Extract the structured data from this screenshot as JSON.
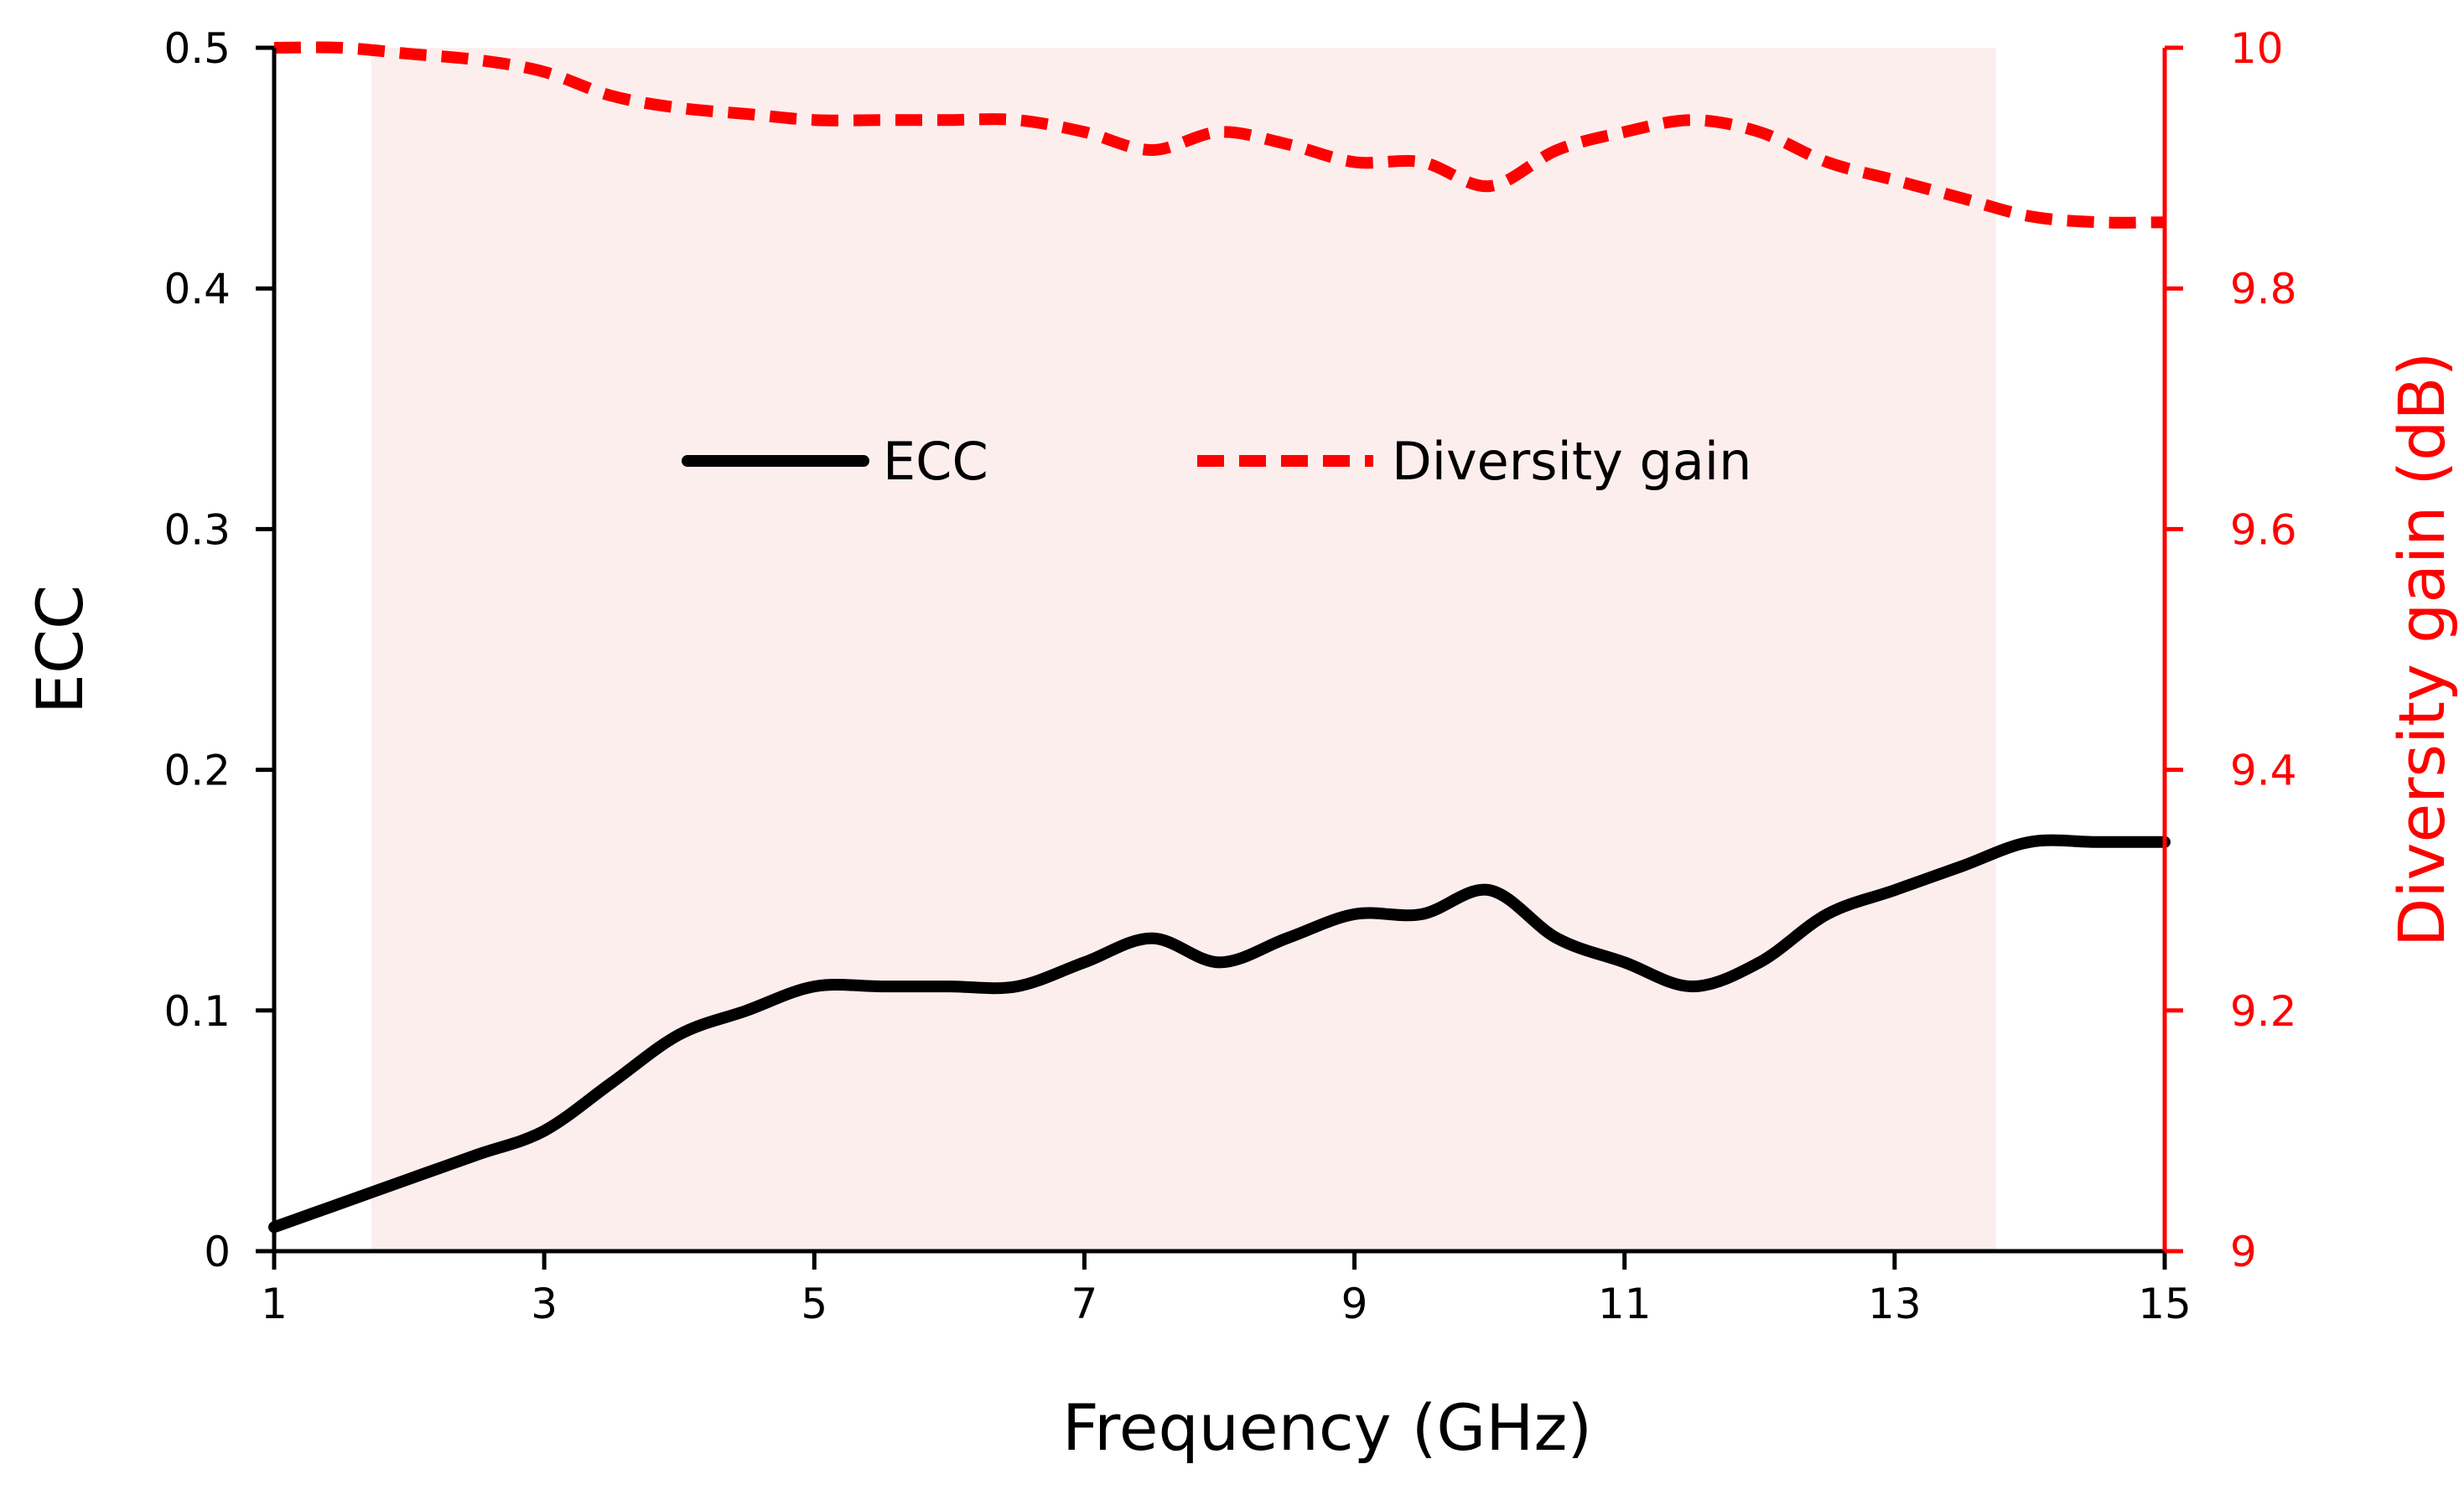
{
  "chart_data": {
    "type": "line",
    "xlabel": "Frequency (GHz)",
    "ylabel_left": "ECC",
    "ylabel_right": "Diversity gain (dB)",
    "xlim": [
      1,
      15
    ],
    "ylim_left": [
      0,
      0.5
    ],
    "ylim_right": [
      9,
      10
    ],
    "x_ticks": [
      "1",
      "3",
      "5",
      "7",
      "9",
      "11",
      "13",
      "15"
    ],
    "y_left_ticks": [
      "0",
      "0.1",
      "0.2",
      "0.3",
      "0.4",
      "0.5"
    ],
    "y_right_ticks": [
      "9",
      "9.2",
      "9.4",
      "9.6",
      "9.8",
      "10"
    ],
    "shaded_band": {
      "x_start": 1.72,
      "x_end": 13.75,
      "color": "#fdeeee"
    },
    "legend": {
      "position": "center",
      "entries": [
        "ECC",
        "Diversity gain"
      ]
    },
    "grid": false,
    "colors": {
      "ecc": "#000000",
      "diversity_gain": "#ff0000",
      "right_axis": "#ff0000"
    },
    "series": [
      {
        "name": "ECC",
        "axis": "left",
        "style": "solid",
        "x": [
          1,
          1.5,
          2,
          2.5,
          3,
          3.5,
          4,
          4.5,
          5,
          5.5,
          6,
          6.5,
          7,
          7.5,
          8,
          8.5,
          9,
          9.5,
          10,
          10.5,
          11,
          11.5,
          12,
          12.5,
          13,
          13.5,
          14,
          14.5,
          15
        ],
        "y": [
          0.01,
          0.02,
          0.03,
          0.04,
          0.05,
          0.07,
          0.09,
          0.1,
          0.11,
          0.11,
          0.11,
          0.11,
          0.12,
          0.13,
          0.12,
          0.13,
          0.14,
          0.14,
          0.15,
          0.13,
          0.12,
          0.11,
          0.12,
          0.14,
          0.15,
          0.16,
          0.17,
          0.17,
          0.17
        ]
      },
      {
        "name": "Diversity gain",
        "axis": "right",
        "style": "dashed",
        "x": [
          1,
          1.5,
          2,
          2.5,
          3,
          3.5,
          4,
          4.5,
          5,
          5.5,
          6,
          6.5,
          7,
          7.5,
          8,
          8.5,
          9,
          9.5,
          10,
          10.5,
          11,
          11.5,
          12,
          12.5,
          13,
          13.5,
          14,
          14.5,
          15
        ],
        "y": [
          10,
          10,
          9.995,
          9.99,
          9.98,
          9.96,
          9.95,
          9.945,
          9.94,
          9.94,
          9.94,
          9.94,
          9.93,
          9.915,
          9.93,
          9.92,
          9.905,
          9.905,
          9.885,
          9.915,
          9.93,
          9.94,
          9.93,
          9.905,
          9.89,
          9.875,
          9.86,
          9.855,
          9.855
        ]
      }
    ]
  }
}
